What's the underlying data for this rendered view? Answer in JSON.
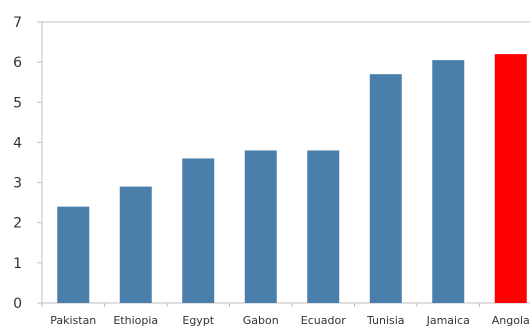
{
  "chart_data": {
    "type": "bar",
    "categories": [
      "Pakistan",
      "Ethiopia",
      "Egypt",
      "Gabon",
      "Ecuador",
      "Tunisia",
      "Jamaica",
      "Angola"
    ],
    "values": [
      2.4,
      2.9,
      3.6,
      3.8,
      3.8,
      5.7,
      6.05,
      6.2
    ],
    "title": "",
    "xlabel": "",
    "ylabel": "",
    "ylim": [
      0,
      7
    ],
    "yticks": [
      0,
      1,
      2,
      3,
      4,
      5,
      6,
      7
    ],
    "grid": false,
    "legend": "none",
    "colors": {
      "default": "#4a7eab",
      "highlight": "#ff0000",
      "highlight_category": "Angola",
      "axis": "#bfbfbf",
      "text": "#333333"
    }
  }
}
